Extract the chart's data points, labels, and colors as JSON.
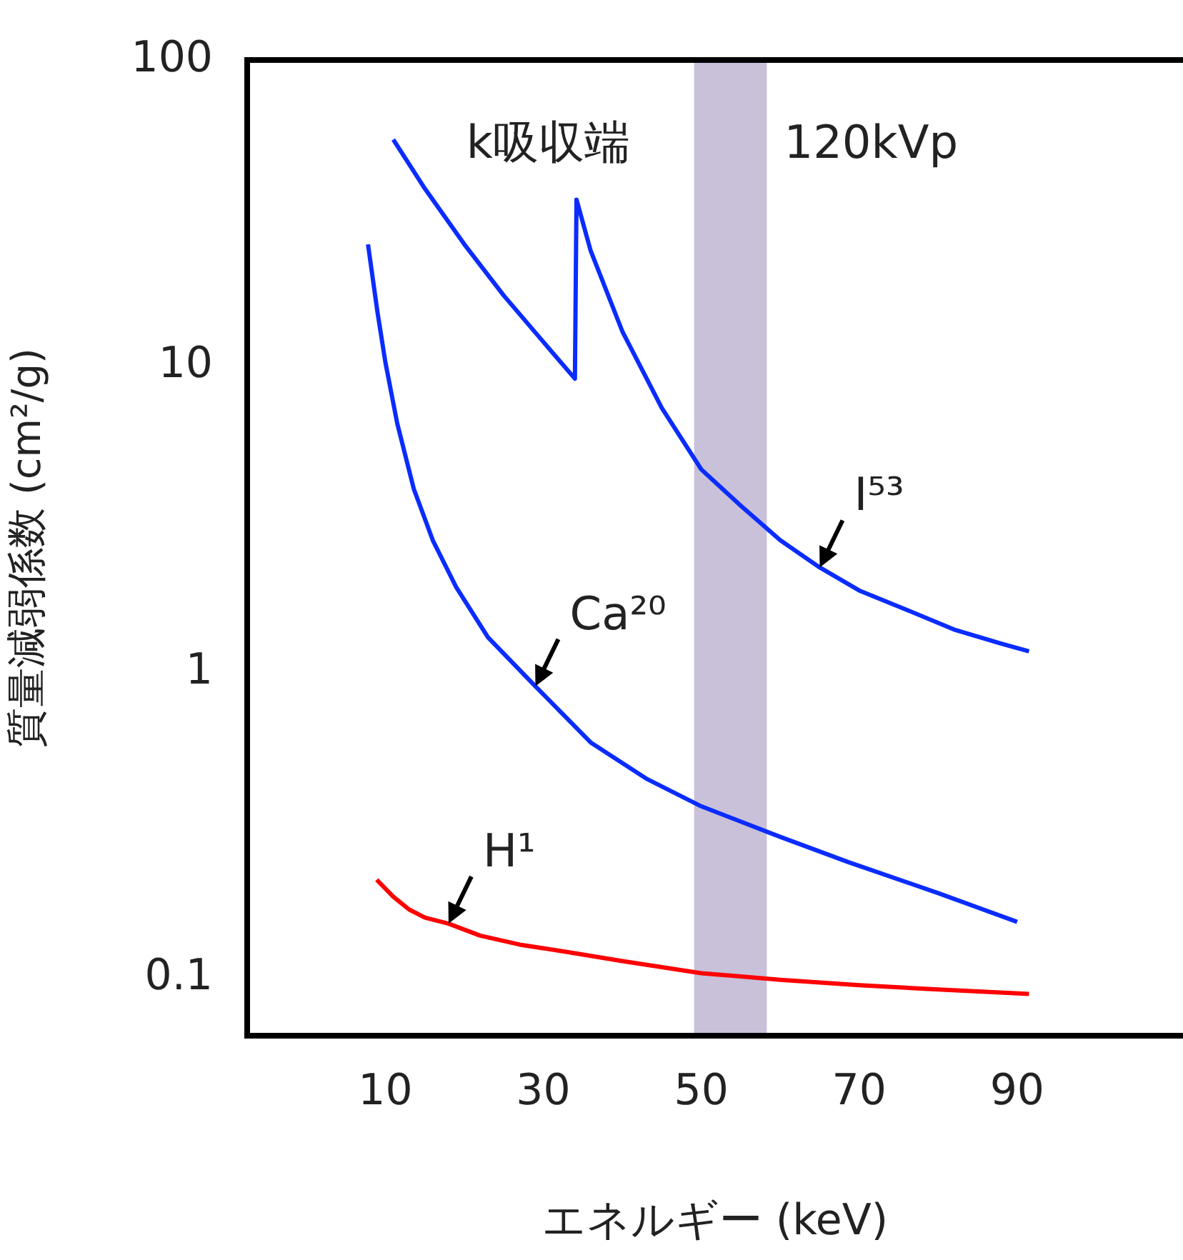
{
  "chart_data": {
    "type": "line",
    "xlabel": "エネルギー (keV)",
    "ylabel": "質量減弱係数 (cm²/g)",
    "log": "y",
    "xlim": [
      -7.5,
      111
    ],
    "xticks": [
      10,
      30,
      50,
      70,
      90
    ],
    "ylim": [
      0.065,
      100
    ],
    "yticks": [
      0.1,
      1,
      10,
      100
    ],
    "series": [
      {
        "color": "#0a2cff",
        "x": [
          11,
          15,
          20,
          25,
          30,
          34,
          34.2,
          36,
          40,
          45,
          50,
          55,
          60,
          65,
          70,
          76,
          82,
          88,
          91.5
        ],
        "values": [
          55,
          38,
          25,
          17,
          12,
          9.1,
          35,
          23.8,
          13,
          7.3,
          4.6,
          3.5,
          2.7,
          2.2,
          1.85,
          1.6,
          1.38,
          1.24,
          1.17
        ]
      },
      {
        "color": "#0a2cff",
        "x": [
          7.8,
          9,
          10,
          11.5,
          13.6,
          16,
          19,
          23,
          29,
          36,
          43,
          50,
          60,
          68.6,
          80,
          90
        ],
        "values": [
          25,
          15,
          10.3,
          6.5,
          3.97,
          2.7,
          1.89,
          1.3,
          0.9,
          0.59,
          0.45,
          0.365,
          0.29,
          0.24,
          0.19,
          0.153
        ]
      },
      {
        "color": "#ff0000",
        "x": [
          8.9,
          11,
          13,
          15,
          18,
          22,
          27,
          33,
          40,
          50,
          60,
          70,
          80,
          91.5
        ],
        "values": [
          0.21,
          0.185,
          0.168,
          0.158,
          0.151,
          0.138,
          0.129,
          0.122,
          0.114,
          0.104,
          0.099,
          0.095,
          0.092,
          0.089
        ]
      }
    ],
    "bands": [
      {
        "axis": "x",
        "from": 49.1,
        "to": 58.3,
        "label": "120kVp",
        "color": "#c9c0da"
      }
    ],
    "annotations": [
      "k吸収端",
      {
        "text": "I⁵³",
        "x": 65,
        "y": 2.2
      },
      {
        "text": "Ca²⁰",
        "x": 29,
        "y": 0.9
      },
      {
        "text": "H¹",
        "x": 18,
        "y": 0.151
      }
    ]
  }
}
